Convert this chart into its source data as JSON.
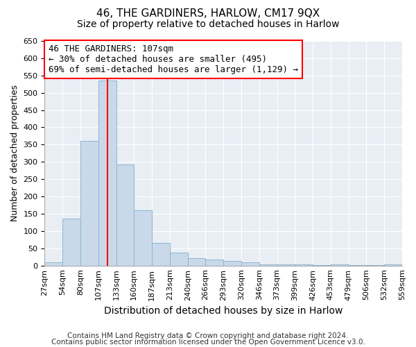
{
  "title": "46, THE GARDINERS, HARLOW, CM17 9QX",
  "subtitle": "Size of property relative to detached houses in Harlow",
  "xlabel": "Distribution of detached houses by size in Harlow",
  "ylabel": "Number of detached properties",
  "bar_values": [
    10,
    135,
    360,
    535,
    293,
    160,
    65,
    38,
    22,
    17,
    13,
    9,
    3,
    3,
    3,
    1,
    3,
    1,
    1,
    3
  ],
  "bin_labels": [
    "27sqm",
    "54sqm",
    "80sqm",
    "107sqm",
    "133sqm",
    "160sqm",
    "187sqm",
    "213sqm",
    "240sqm",
    "266sqm",
    "293sqm",
    "320sqm",
    "346sqm",
    "373sqm",
    "399sqm",
    "426sqm",
    "453sqm",
    "479sqm",
    "506sqm",
    "532sqm",
    "559sqm"
  ],
  "bar_color": "#c9d9ea",
  "bar_edge_color": "#8fb4d0",
  "red_line_x": 3.5,
  "annotation_text": "46 THE GARDINERS: 107sqm\n← 30% of detached houses are smaller (495)\n69% of semi-detached houses are larger (1,129) →",
  "annotation_box_color": "white",
  "annotation_box_edge_color": "red",
  "red_line_color": "red",
  "ylim": [
    0,
    650
  ],
  "yticks": [
    0,
    50,
    100,
    150,
    200,
    250,
    300,
    350,
    400,
    450,
    500,
    550,
    600,
    650
  ],
  "footnote1": "Contains HM Land Registry data © Crown copyright and database right 2024.",
  "footnote2": "Contains public sector information licensed under the Open Government Licence v3.0.",
  "title_fontsize": 11,
  "subtitle_fontsize": 10,
  "xlabel_fontsize": 10,
  "ylabel_fontsize": 9,
  "annotation_fontsize": 9,
  "tick_fontsize": 8,
  "footnote_fontsize": 7.5,
  "background_color": "#e8eef4"
}
